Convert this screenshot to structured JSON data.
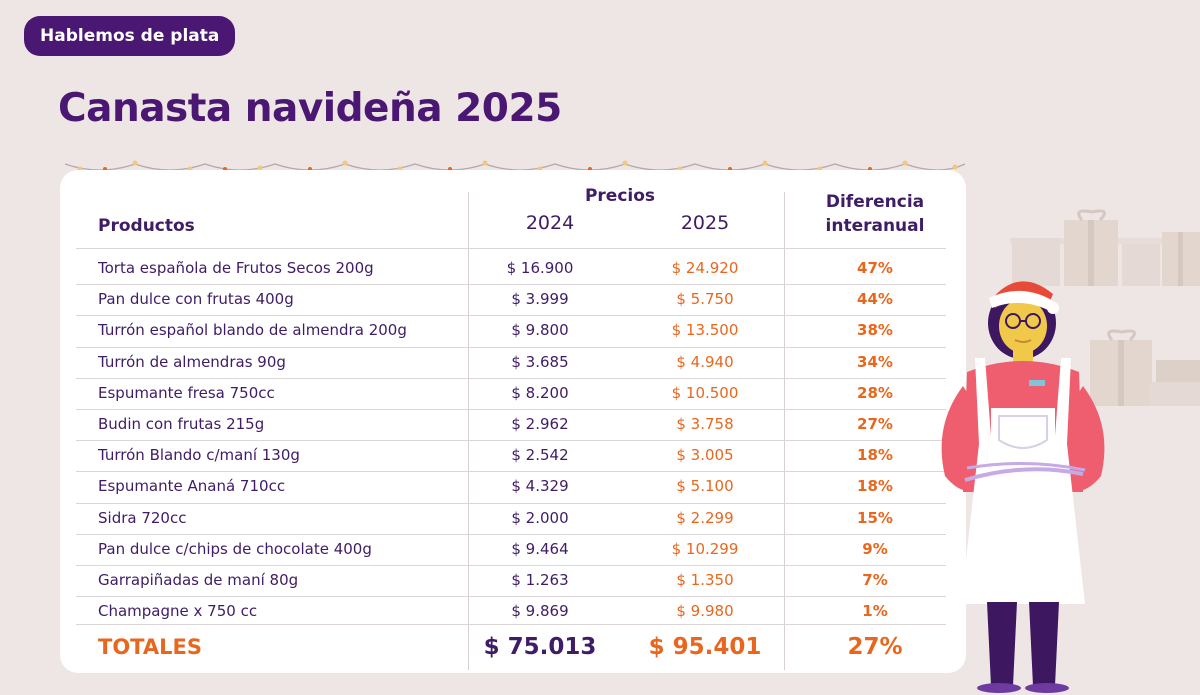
{
  "badge": "Hablemos de plata",
  "title": "Canasta navideña 2025",
  "table": {
    "header_products": "Productos",
    "header_prices": "Precios",
    "header_2024": "2024",
    "header_2025": "2025",
    "header_diff_line1": "Diferencia",
    "header_diff_line2": "interanual",
    "rows": [
      {
        "name": "Torta española de Frutos Secos 200g",
        "p2024": "$ 16.900",
        "p2025": "$ 24.920",
        "diff": "47%"
      },
      {
        "name": "Pan dulce con frutas 400g",
        "p2024": "$ 3.999",
        "p2025": "$ 5.750",
        "diff": "44%"
      },
      {
        "name": "Turrón español blando de almendra 200g",
        "p2024": "$ 9.800",
        "p2025": "$ 13.500",
        "diff": "38%"
      },
      {
        "name": "Turrón de almendras 90g",
        "p2024": "$ 3.685",
        "p2025": "$ 4.940",
        "diff": "34%"
      },
      {
        "name": "Espumante fresa 750cc",
        "p2024": "$ 8.200",
        "p2025": "$ 10.500",
        "diff": "28%"
      },
      {
        "name": "Budin con frutas 215g",
        "p2024": "$ 2.962",
        "p2025": "$ 3.758",
        "diff": "27%"
      },
      {
        "name": "Turrón Blando c/maní 130g",
        "p2024": "$ 2.542",
        "p2025": "$ 3.005",
        "diff": "18%"
      },
      {
        "name": "Espumante Ananá 710cc",
        "p2024": "$ 4.329",
        "p2025": "$ 5.100",
        "diff": "18%"
      },
      {
        "name": "Sidra 720cc",
        "p2024": "$ 2.000",
        "p2025": "$ 2.299",
        "diff": "15%"
      },
      {
        "name": "Pan dulce c/chips de chocolate 400g",
        "p2024": "$ 9.464",
        "p2025": "$ 10.299",
        "diff": "9%"
      },
      {
        "name": "Garrapiñadas de maní 80g",
        "p2024": "$ 1.263",
        "p2025": "$ 1.350",
        "diff": "7%"
      },
      {
        "name": "Champagne x 750 cc",
        "p2024": "$ 9.869",
        "p2025": "$ 9.980",
        "diff": "1%"
      }
    ],
    "totals_label": "TOTALES",
    "totals_2024": "$ 75.013",
    "totals_2025": "$ 95.401",
    "totals_diff": "27%"
  },
  "colors": {
    "purple": "#4a1772",
    "orange": "#e8671e",
    "background": "#ede6e4"
  },
  "icons": [
    "string-lights-icon",
    "gift-boxes-illustration",
    "shopkeeper-santa-hat-illustration"
  ]
}
